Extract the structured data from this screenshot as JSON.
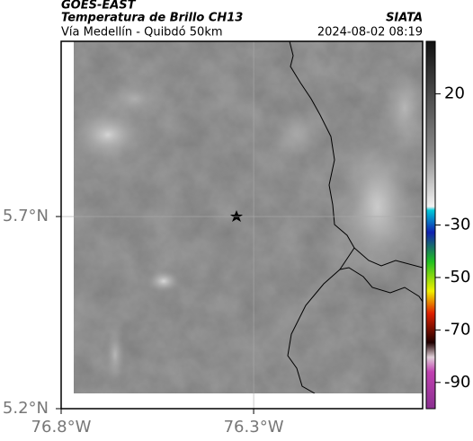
{
  "header": {
    "title": "GOES-EAST",
    "subtitle": "Temperatura de Brillo CH13",
    "source": "SIATA",
    "location": "Vía Medellín - Quibdó 50km",
    "datetime": "2024-08-02 08:19"
  },
  "map": {
    "ylim": [
      5.2,
      6.156
    ],
    "xlim": [
      -76.8,
      -75.861
    ],
    "yticks": [
      {
        "value": 5.7,
        "label": "5.7°N"
      },
      {
        "value": 5.2,
        "label": "5.2°N"
      }
    ],
    "xticks": [
      {
        "value": -76.8,
        "label": "76.8°W"
      },
      {
        "value": -76.3,
        "label": "76.3°W"
      }
    ]
  },
  "colorbar": {
    "lim": [
      -100,
      40
    ],
    "ticks": [
      20,
      -30,
      -50,
      -70,
      -90
    ]
  }
}
